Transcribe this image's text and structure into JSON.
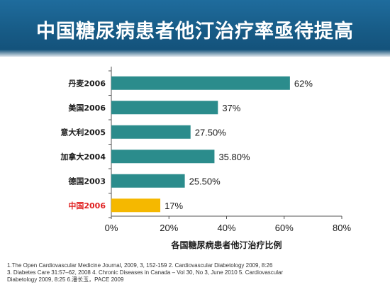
{
  "header": {
    "title": "中国糖尿病患者他汀治疗率亟待提高"
  },
  "chart_data": {
    "type": "bar",
    "orientation": "horizontal",
    "categories": [
      "丹麦2006",
      "美国2006",
      "意大利2005",
      "加拿大2004",
      "德国2003",
      "中国2006"
    ],
    "values": [
      62,
      37,
      27.5,
      35.8,
      25.5,
      17
    ],
    "value_labels": [
      "62%",
      "37%",
      "27.50%",
      "35.80%",
      "25.50%",
      "17%"
    ],
    "xlabel": "各国糖尿病患者他汀治疗比例",
    "ylabel": "",
    "xlim": [
      0,
      80
    ],
    "x_ticks": [
      "0%",
      "20%",
      "40%",
      "60%",
      "80%"
    ],
    "x_tick_values": [
      0,
      20,
      40,
      60,
      80
    ],
    "grid": false,
    "colors": {
      "default": "#2b8c8c",
      "highlight": "#f5b800",
      "highlight_label": "#e02020",
      "label": "#1a1a1a"
    },
    "highlight_index": 5
  },
  "footnotes": {
    "line1": "1.The Open Cardiovascular Medicine Journal, 2009, 3, 152-159     2. Cardiovascular Diabetology 2009, 8:26",
    "line2": "3. Diabetes  Care 31:57–62, 2008     4. Chronic Diseases  in Canada – Vol 30, No 3, June 2010    5. Cardiovascular",
    "line3": "Diabetology 2009, 8:25     6.潘长玉，PACE 2009"
  }
}
